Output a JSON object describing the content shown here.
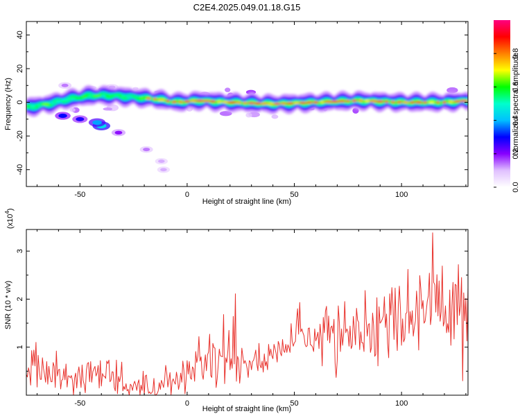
{
  "title": "C2E4.2025.049.01.18.G15",
  "chart_data": [
    {
      "type": "heatmap",
      "xlabel": "Height of straight line (km)",
      "ylabel": "Frequency (Hz)",
      "xlim": [
        -75,
        131
      ],
      "ylim": [
        -50,
        48
      ],
      "xticks": [
        -50,
        0,
        50,
        100
      ],
      "xtick_labels": [
        "-50",
        "0",
        "50",
        "100"
      ],
      "yticks": [
        -40,
        -20,
        0,
        20,
        40
      ],
      "ytick_labels": [
        "-40",
        "-20",
        "0",
        "20",
        "40"
      ],
      "grid": false,
      "colorbar": {
        "label": "Normalized spectral amplitude",
        "range": [
          0,
          1
        ],
        "ticks": [
          0.0,
          0.2,
          0.4,
          0.6,
          0.8
        ],
        "tick_labels": [
          "0.0",
          "0.2",
          "0.4",
          "0.6",
          "0.8"
        ],
        "colormap": [
          "#ffffff",
          "#e0c0ff",
          "#8800ff",
          "#0000ff",
          "#00c0ff",
          "#00ffcc",
          "#00ff00",
          "#ffff00",
          "#ff8000",
          "#ff0000",
          "#ff0080"
        ]
      },
      "ridge": [
        [
          -75,
          -3
        ],
        [
          -65,
          -1
        ],
        [
          -55,
          2
        ],
        [
          -45,
          4
        ],
        [
          -35,
          4
        ],
        [
          -25,
          3
        ],
        [
          -15,
          2
        ],
        [
          -5,
          0
        ],
        [
          5,
          1
        ],
        [
          20,
          0
        ],
        [
          40,
          -1
        ],
        [
          60,
          0
        ],
        [
          80,
          1
        ],
        [
          100,
          0
        ],
        [
          120,
          0
        ],
        [
          131,
          1
        ]
      ],
      "blobs": [
        [
          -58,
          -8,
          0.55
        ],
        [
          -50,
          -10,
          0.5
        ],
        [
          -40,
          -14,
          0.8
        ],
        [
          -42,
          -12,
          0.7
        ],
        [
          -32,
          -18,
          0.35
        ],
        [
          -19,
          -28,
          0.25
        ],
        [
          -12,
          -35,
          0.2
        ],
        [
          -11,
          -40,
          0.2
        ],
        [
          -57,
          10,
          0.25
        ],
        [
          -35,
          9,
          0.2
        ]
      ]
    },
    {
      "type": "line",
      "xlabel": "Height of straight line (km)",
      "ylabel": "SNR (10 * v/v)",
      "yscale_label": "(x10",
      "yscale_exp": "4",
      "yscale_close": ")",
      "xlim": [
        -75,
        131
      ],
      "ylim": [
        0,
        3.45
      ],
      "xticks": [
        -50,
        0,
        50,
        100
      ],
      "xtick_labels": [
        "-50",
        "0",
        "50",
        "100"
      ],
      "yticks": [
        1,
        2,
        3
      ],
      "ytick_labels": [
        "1",
        "2",
        "3"
      ],
      "grid": false,
      "line_color": "#e8302a",
      "x_start": -75,
      "x_step": 0.5,
      "values": [
        0.43,
        0.38,
        0.57,
        0.47,
        0.21,
        0.93,
        0.62,
        0.94,
        0.61,
        1.1,
        0.17,
        0.83,
        0.53,
        0.33,
        0.33,
        0.78,
        0.56,
        0.42,
        0.27,
        0.7,
        0.23,
        0.6,
        0.39,
        0.28,
        0.28,
        0.68,
        0.6,
        0.16,
        0.92,
        0.4,
        0.53,
        0.54,
        0.13,
        0.31,
        0.33,
        0.55,
        0.32,
        0.65,
        0.17,
        0.4,
        0.4,
        0.36,
        0.41,
        0.31,
        0.01,
        0.36,
        0.46,
        0.15,
        0.45,
        0.59,
        0.4,
        0.16,
        0.63,
        0.31,
        0.22,
        0.05,
        0.52,
        0.66,
        0.68,
        0.28,
        0.7,
        0.27,
        0.49,
        0.55,
        0.6,
        0.4,
        0.46,
        0.62,
        0.15,
        0.72,
        0.19,
        0.45,
        0.4,
        0.39,
        0.35,
        0.71,
        0.66,
        0.73,
        0.28,
        0.31,
        0.49,
        0.48,
        0.16,
        0.09,
        0.73,
        0.03,
        0.39,
        0.28,
        0.4,
        0.69,
        0.09,
        0.18,
        0.12,
        0.24,
        0.09,
        0.12,
        0.0,
        0.23,
        0.2,
        0.1,
        0.22,
        0.29,
        0.22,
        0.1,
        0.25,
        0.32,
        0.0,
        0.21,
        0.1,
        0.5,
        0.0,
        0.4,
        0.42,
        0.18,
        0.04,
        0.07,
        0.03,
        0.05,
        0.09,
        0.35,
        0.0,
        0.01,
        0.03,
        0.09,
        0.26,
        0.12,
        0.31,
        0.24,
        0.16,
        0.32,
        0.62,
        0.46,
        0.17,
        0.32,
        0.47,
        0.01,
        0.29,
        0.34,
        0.27,
        0.23,
        0.48,
        0.35,
        0.12,
        0.24,
        0.46,
        0.27,
        0.71,
        0.51,
        0.03,
        0.32,
        0.72,
        0.44,
        0.7,
        0.36,
        0.33,
        0.59,
        0.55,
        0.29,
        0.91,
        0.68,
        0.81,
        1.22,
        0.71,
        0.8,
        0.43,
        0.33,
        0.62,
        0.84,
        0.51,
        0.84,
        0.9,
        1.27,
        0.41,
        0.37,
        1.08,
        0.99,
        0.98,
        0.16,
        0.33,
        0.64,
        0.96,
        0.82,
        0.81,
        0.8,
        1.68,
        0.24,
        0.78,
        0.68,
        0.93,
        1.35,
        0.53,
        0.76,
        0.56,
        1.64,
        0.65,
        2.11,
        0.29,
        0.81,
        0.74,
        0.25,
        0.51,
        0.98,
        0.81,
        0.66,
        0.72,
        0.66,
        0.55,
        0.37,
        0.72,
        0.69,
        0.53,
        0.7,
        0.73,
        0.82,
        0.94,
        0.65,
        0.51,
        1.08,
        0.62,
        0.57,
        0.71,
        0.48,
        0.86,
        0.61,
        0.7,
        0.53,
        1.06,
        0.82,
        0.96,
        0.82,
        0.76,
        1.06,
        0.97,
        0.87,
        0.69,
        1.12,
        1.05,
        0.88,
        0.82,
        1.16,
        0.93,
        0.89,
        1.06,
        0.89,
        1.05,
        0.99,
        0.89,
        1.49,
        1.13,
        1.02,
        1.09,
        1.12,
        1.54,
        1.8,
        1.27,
        1.93,
        1.32,
        1.38,
        1.3,
        1.24,
        1.06,
        1.01,
        1.03,
        1.39,
        1.4,
        1.05,
        1.04,
        1.0,
        0.91,
        1.38,
        1.13,
        1.21,
        1.31,
        0.97,
        1.48,
        1.21,
        0.61,
        1.62,
        1.3,
        1.75,
        1.85,
        1.14,
        1.65,
        1.09,
        1.41,
        1.44,
        1.29,
        1.58,
        0.67,
        0.37,
        0.72,
        1.86,
        1.52,
        0.91,
        1.38,
        1.04,
        1.28,
        1.95,
        1.3,
        1.38,
        1.33,
        1.02,
        1.44,
        0.97,
        1.03,
        1.64,
        1.39,
        1.05,
        1.81,
        1.56,
        1.52,
        0.95,
        1.32,
        1.09,
        1.09,
        0.91,
        2.18,
        1.59,
        1.23,
        1.47,
        1.49,
        0.89,
        1.0,
        1.71,
        1.45,
        0.81,
        0.85,
        2.03,
        0.61,
        1.84,
        1.5,
        1.53,
        1.58,
        1.65,
        2.05,
        1.41,
        1.69,
        1.08,
        0.78,
        2.11,
        1.67,
        2.24,
        1.86,
        1.16,
        2.23,
        1.39,
        0.93,
        1.89,
        2.27,
        1.79,
        1.04,
        1.59,
        1.11,
        1.18,
        1.7,
        1.72,
        2.62,
        1.29,
        1.74,
        1.47,
        1.76,
        1.23,
        1.42,
        1.55,
        2.17,
        1.81,
        0.94,
        2.49,
        2.21,
        1.8,
        1.97,
        1.5,
        1.54,
        1.74,
        1.95,
        2.07,
        2.54,
        1.47,
        1.67,
        3.38,
        2.35,
        2.3,
        1.73,
        2.51,
        1.65,
        2.38,
        1.54,
        1.74,
        2.69,
        1.44,
        1.53,
        1.86,
        1.3,
        1.49,
        1.31,
        2.19,
        1.04,
        1.86,
        2.35,
        1.17,
        2.31,
        2.29,
        1.47,
        2.72,
        1.66,
        1.86,
        2.45,
        0.3,
        2.13,
        1.55,
        2.02,
        1.13,
        2.24,
        2.51,
        2.3,
        2.14,
        1.85,
        2.05,
        1.86,
        2.79,
        1.59,
        1.57,
        1.6,
        2.4,
        1.88,
        1.94,
        1.57,
        1.84,
        1.59,
        1.58,
        2.53,
        1.19,
        1.58,
        1.64,
        1.58,
        2.28,
        1.18,
        2.25,
        2.25,
        1.77,
        2.62,
        1.39,
        0.94,
        1.52,
        1.9,
        1.6,
        1.98,
        1.77,
        1.33,
        1.7,
        1.66,
        1.08,
        2.16,
        1.74,
        1.73,
        2.52,
        2.13,
        2.79,
        2.22,
        1.95,
        1.78,
        1.77,
        2.77,
        1.75,
        2.07,
        2.55,
        2.04,
        1.37,
        2.14,
        1.56,
        1.82,
        2.35,
        2.74,
        1.73,
        1.83,
        1.67,
        1.41,
        2.12,
        1.69,
        2.49,
        2.57,
        2.34,
        1.88,
        1.73,
        1.88,
        1.57,
        1.42,
        1.88,
        1.73,
        2.1,
        2.42,
        1.43,
        1.79,
        1.81,
        1.35,
        2.56,
        1.99,
        1.46,
        2.05,
        2.71,
        1.88,
        1.7,
        2.03,
        2.36,
        1.56,
        2.31,
        1.98,
        2.28,
        1.29,
        0.87,
        2.03,
        1.56,
        1.41,
        2.67,
        1.59,
        1.52,
        1.14,
        2.64,
        2.43,
        1.76,
        2.52,
        1.24,
        1.25,
        2.06,
        2.7,
        1.58,
        2.26,
        2.43,
        1.78,
        1.23,
        1.98,
        0.94,
        2.68,
        2.15,
        2.72,
        2.5,
        2.03,
        1.7,
        1.36,
        2.52,
        2.16,
        2.53,
        1.42,
        2.15,
        2.07,
        1.2,
        1.4,
        1.86,
        1.41,
        1.2,
        1.74,
        2.11,
        1.77,
        1.48,
        2.55,
        1.85,
        2.01,
        1.68,
        2.71,
        1.91,
        2.08,
        2.26,
        1.92,
        2.59,
        1.7,
        1.88,
        1.91,
        2.39,
        2.09,
        2.13,
        2.09,
        1.48,
        1.45,
        1.94,
        1.09,
        1.78,
        2.23,
        1.55,
        2.52,
        2.48,
        2.39,
        2.46,
        2.39,
        2.02,
        1.09,
        1.51,
        2.43,
        1.67,
        1.36,
        2.72,
        2.13,
        2.62,
        1.31,
        2.02,
        1.94,
        1.74,
        1.17,
        1.79,
        1.25,
        1.77,
        2.14,
        1.28,
        2.05,
        1.61,
        2.72,
        1.35,
        1.36,
        2.47,
        1.51,
        2.35,
        2.43,
        2.18,
        1.17,
        1.93,
        1.45,
        2.25,
        1.65,
        2.17,
        1.75,
        2.05,
        1.51,
        2.11,
        1.1,
        1.56,
        1.82,
        2.06,
        1.32,
        2.1,
        2.16,
        1.91,
        1.53,
        2.22,
        1.48,
        2.63,
        2.4,
        1.56,
        1.27,
        1.46,
        2.43,
        2.18,
        1.21,
        1.16,
        1.61,
        1.14,
        1.37,
        2.11,
        2.38,
        1.48,
        1.99,
        2.03,
        2.5,
        2.29,
        2.0,
        2.28,
        1.22,
        2.18,
        0.99,
        1.64,
        1.12,
        2.15,
        1.87,
        1.35,
        1.34
      ]
    }
  ]
}
